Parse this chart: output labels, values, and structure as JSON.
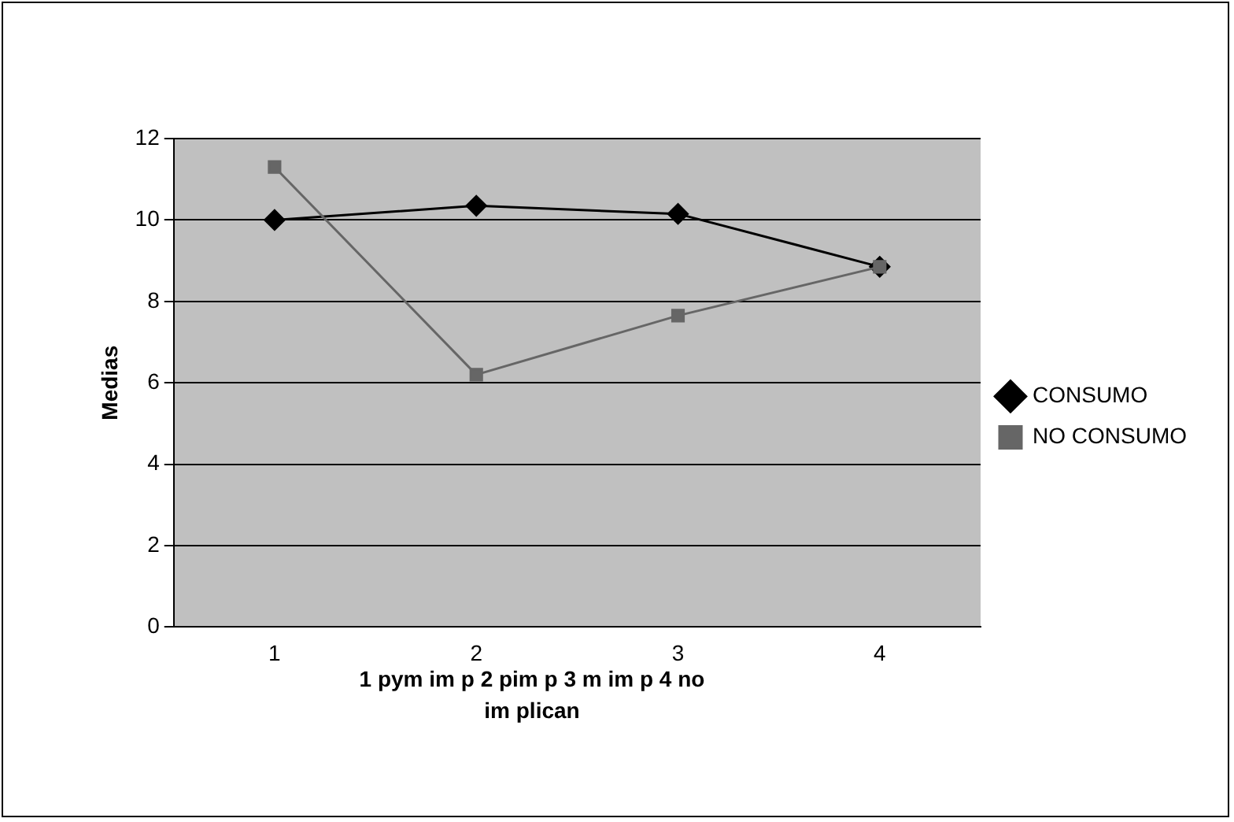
{
  "chart_data": {
    "type": "line",
    "ylabel": "Medias",
    "xlabel": "1 pym im p 2 pim p 3 m im p 4 no im plican",
    "categories": [
      "1",
      "2",
      "3",
      "4"
    ],
    "series": [
      {
        "name": "CONSUMO",
        "color": "#000000",
        "marker": "diamond",
        "values": [
          10,
          10.35,
          10.15,
          8.85
        ]
      },
      {
        "name": "NO CONSUMO",
        "color": "#666666",
        "marker": "square",
        "values": [
          11.3,
          6.2,
          7.65,
          8.85
        ]
      }
    ],
    "ylim": [
      0,
      12
    ],
    "yticks": [
      0,
      2,
      4,
      6,
      8,
      10,
      12
    ],
    "grid": "y",
    "legend": "right"
  }
}
